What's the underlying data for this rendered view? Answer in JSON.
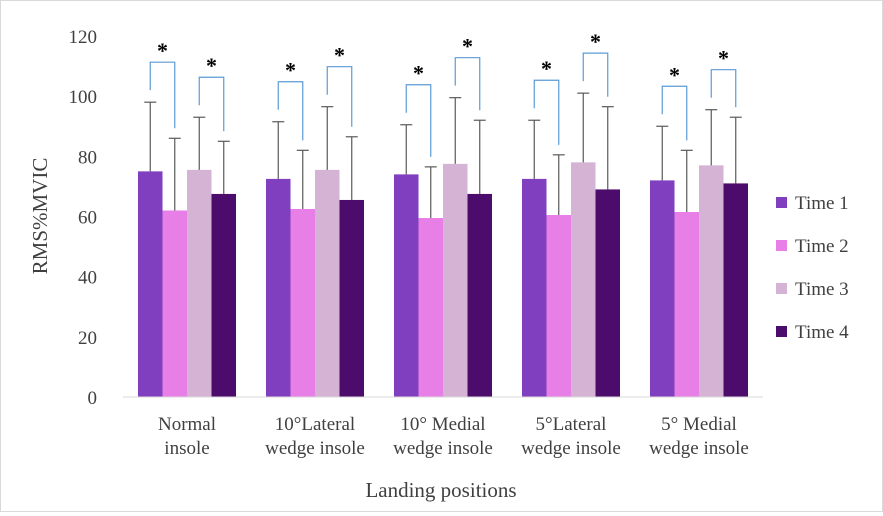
{
  "chart_data": {
    "type": "bar",
    "title": "",
    "xlabel": "Landing positions",
    "ylabel": "RMS%MVIC",
    "ylim": [
      0,
      120
    ],
    "yticks": [
      "0",
      "20",
      "40",
      "60",
      "80",
      "100",
      "120"
    ],
    "categories": [
      [
        "Normal",
        "insole"
      ],
      [
        "10°Lateral",
        "wedge insole"
      ],
      [
        "10° Medial",
        "wedge insole"
      ],
      [
        "5°Lateral",
        "wedge insole"
      ],
      [
        "5° Medial",
        "wedge insole"
      ]
    ],
    "series": [
      {
        "name": "Time 1",
        "color": "#7f3fbf",
        "values": [
          75,
          72.5,
          74,
          72.5,
          72
        ],
        "error": [
          23,
          19,
          16.5,
          19.5,
          18
        ]
      },
      {
        "name": "Time 2",
        "color": "#e77fe7",
        "values": [
          62,
          62.5,
          59.5,
          60.5,
          61.5
        ],
        "error": [
          24,
          19.5,
          17,
          20,
          20.5
        ]
      },
      {
        "name": "Time 3",
        "color": "#d5b3d5",
        "values": [
          75.5,
          75.5,
          77.5,
          78,
          77
        ],
        "error": [
          17.5,
          21,
          22,
          23,
          18.5
        ]
      },
      {
        "name": "Time 4",
        "color": "#4b0c6b",
        "values": [
          67.5,
          65.5,
          67.5,
          69,
          71
        ],
        "error": [
          17.5,
          21,
          24.5,
          27.5,
          22
        ]
      }
    ],
    "significance": {
      "symbol": "*",
      "bracket_color": "#5b9bd5",
      "pairs": [
        [
          "Time 1",
          "Time 2"
        ],
        [
          "Time 3",
          "Time 4"
        ]
      ]
    },
    "legend": {
      "position": "right"
    },
    "grid": false
  }
}
